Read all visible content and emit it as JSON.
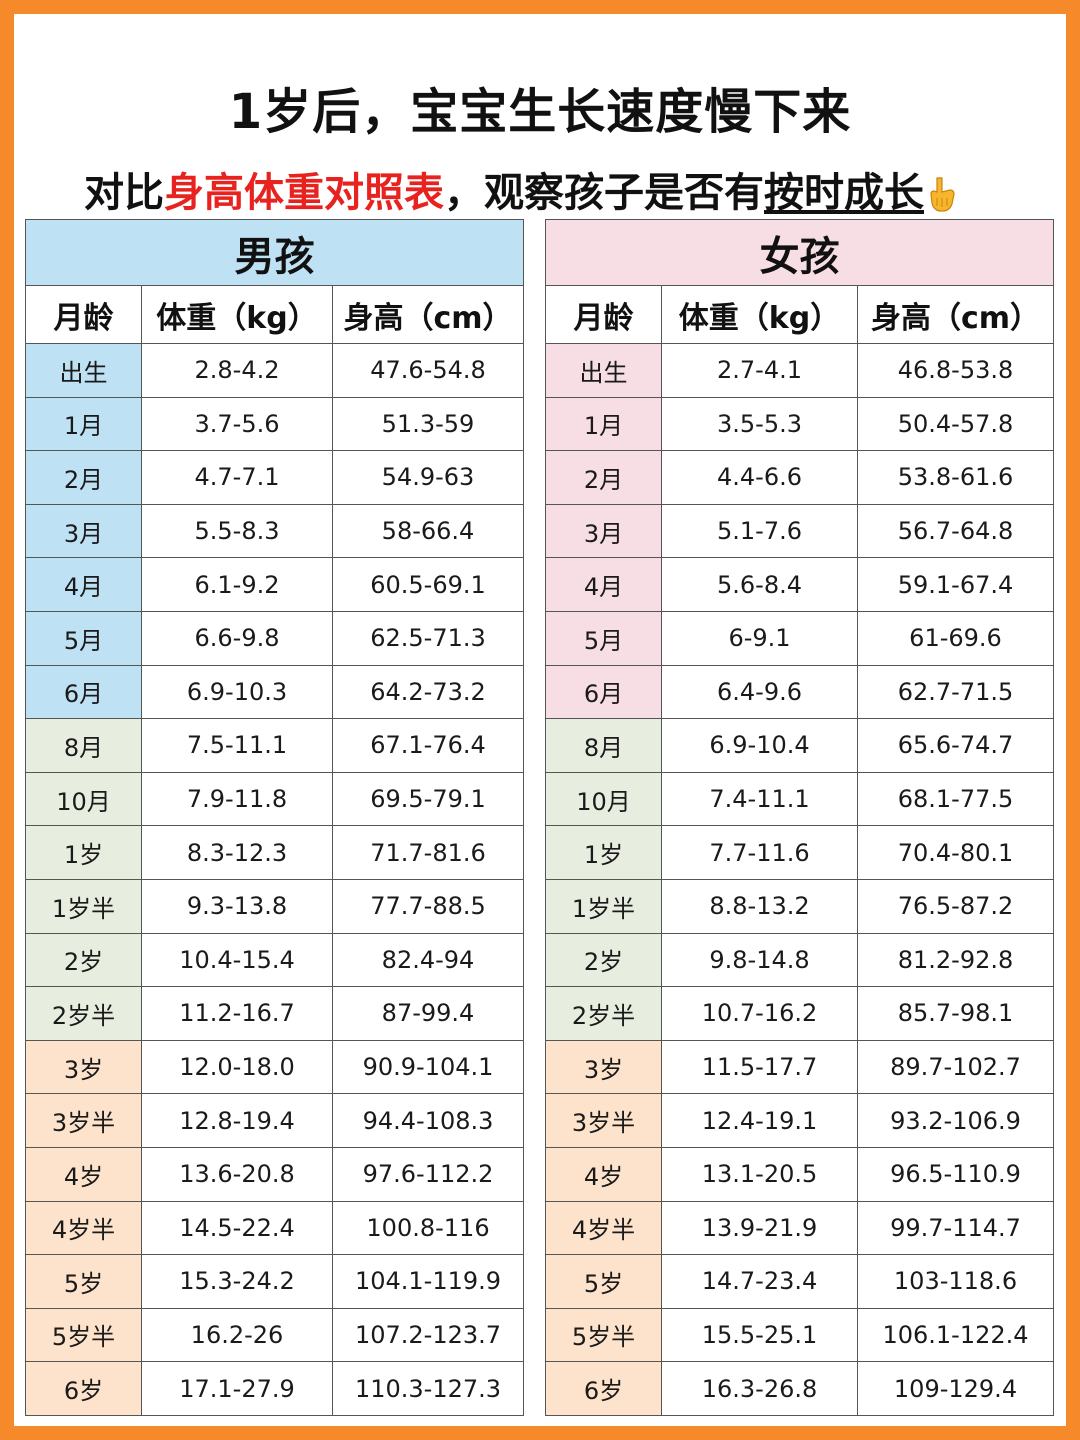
{
  "header": {
    "title": "1岁后，宝宝生长速度慢下来",
    "subtitle_part1": "对比",
    "subtitle_highlight": "身高体重对照表",
    "subtitle_part2": "，观察孩子是否有",
    "subtitle_underlined": "按时成长",
    "pointer_icon": "pointing-down-hand-icon"
  },
  "colors": {
    "border": "#f6892a",
    "highlight": "#e8231f",
    "boys_header": "#bfe1f4",
    "girls_header": "#f7dde4",
    "toddler_band": "#e8eedf",
    "child_band": "#fde3cc"
  },
  "columns": {
    "age": "月龄",
    "weight": "体重（kg）",
    "height": "身高（cm）"
  },
  "boys": {
    "label": "男孩",
    "rows": [
      {
        "age": "出生",
        "weight": "2.8-4.2",
        "height": "47.6-54.8",
        "band": "infant"
      },
      {
        "age": "1月",
        "weight": "3.7-5.6",
        "height": "51.3-59",
        "band": "infant"
      },
      {
        "age": "2月",
        "weight": "4.7-7.1",
        "height": "54.9-63",
        "band": "infant"
      },
      {
        "age": "3月",
        "weight": "5.5-8.3",
        "height": "58-66.4",
        "band": "infant"
      },
      {
        "age": "4月",
        "weight": "6.1-9.2",
        "height": "60.5-69.1",
        "band": "infant"
      },
      {
        "age": "5月",
        "weight": "6.6-9.8",
        "height": "62.5-71.3",
        "band": "infant"
      },
      {
        "age": "6月",
        "weight": "6.9-10.3",
        "height": "64.2-73.2",
        "band": "infant"
      },
      {
        "age": "8月",
        "weight": "7.5-11.1",
        "height": "67.1-76.4",
        "band": "toddler"
      },
      {
        "age": "10月",
        "weight": "7.9-11.8",
        "height": "69.5-79.1",
        "band": "toddler"
      },
      {
        "age": "1岁",
        "weight": "8.3-12.3",
        "height": "71.7-81.6",
        "band": "toddler"
      },
      {
        "age": "1岁半",
        "weight": "9.3-13.8",
        "height": "77.7-88.5",
        "band": "toddler"
      },
      {
        "age": "2岁",
        "weight": "10.4-15.4",
        "height": "82.4-94",
        "band": "toddler"
      },
      {
        "age": "2岁半",
        "weight": "11.2-16.7",
        "height": "87-99.4",
        "band": "toddler"
      },
      {
        "age": "3岁",
        "weight": "12.0-18.0",
        "height": "90.9-104.1",
        "band": "child"
      },
      {
        "age": "3岁半",
        "weight": "12.8-19.4",
        "height": "94.4-108.3",
        "band": "child"
      },
      {
        "age": "4岁",
        "weight": "13.6-20.8",
        "height": "97.6-112.2",
        "band": "child"
      },
      {
        "age": "4岁半",
        "weight": "14.5-22.4",
        "height": "100.8-116",
        "band": "child"
      },
      {
        "age": "5岁",
        "weight": "15.3-24.2",
        "height": "104.1-119.9",
        "band": "child"
      },
      {
        "age": "5岁半",
        "weight": "16.2-26",
        "height": "107.2-123.7",
        "band": "child"
      },
      {
        "age": "6岁",
        "weight": "17.1-27.9",
        "height": "110.3-127.3",
        "band": "child"
      }
    ]
  },
  "girls": {
    "label": "女孩",
    "rows": [
      {
        "age": "出生",
        "weight": "2.7-4.1",
        "height": "46.8-53.8",
        "band": "infant"
      },
      {
        "age": "1月",
        "weight": "3.5-5.3",
        "height": "50.4-57.8",
        "band": "infant"
      },
      {
        "age": "2月",
        "weight": "4.4-6.6",
        "height": "53.8-61.6",
        "band": "infant"
      },
      {
        "age": "3月",
        "weight": "5.1-7.6",
        "height": "56.7-64.8",
        "band": "infant"
      },
      {
        "age": "4月",
        "weight": "5.6-8.4",
        "height": "59.1-67.4",
        "band": "infant"
      },
      {
        "age": "5月",
        "weight": "6-9.1",
        "height": "61-69.6",
        "band": "infant"
      },
      {
        "age": "6月",
        "weight": "6.4-9.6",
        "height": "62.7-71.5",
        "band": "infant"
      },
      {
        "age": "8月",
        "weight": "6.9-10.4",
        "height": "65.6-74.7",
        "band": "toddler"
      },
      {
        "age": "10月",
        "weight": "7.4-11.1",
        "height": "68.1-77.5",
        "band": "toddler"
      },
      {
        "age": "1岁",
        "weight": "7.7-11.6",
        "height": "70.4-80.1",
        "band": "toddler"
      },
      {
        "age": "1岁半",
        "weight": "8.8-13.2",
        "height": "76.5-87.2",
        "band": "toddler"
      },
      {
        "age": "2岁",
        "weight": "9.8-14.8",
        "height": "81.2-92.8",
        "band": "toddler"
      },
      {
        "age": "2岁半",
        "weight": "10.7-16.2",
        "height": "85.7-98.1",
        "band": "toddler"
      },
      {
        "age": "3岁",
        "weight": "11.5-17.7",
        "height": "89.7-102.7",
        "band": "child"
      },
      {
        "age": "3岁半",
        "weight": "12.4-19.1",
        "height": "93.2-106.9",
        "band": "child"
      },
      {
        "age": "4岁",
        "weight": "13.1-20.5",
        "height": "96.5-110.9",
        "band": "child"
      },
      {
        "age": "4岁半",
        "weight": "13.9-21.9",
        "height": "99.7-114.7",
        "band": "child"
      },
      {
        "age": "5岁",
        "weight": "14.7-23.4",
        "height": "103-118.6",
        "band": "child"
      },
      {
        "age": "5岁半",
        "weight": "15.5-25.1",
        "height": "106.1-122.4",
        "band": "child"
      },
      {
        "age": "6岁",
        "weight": "16.3-26.8",
        "height": "109-129.4",
        "band": "child"
      }
    ]
  }
}
